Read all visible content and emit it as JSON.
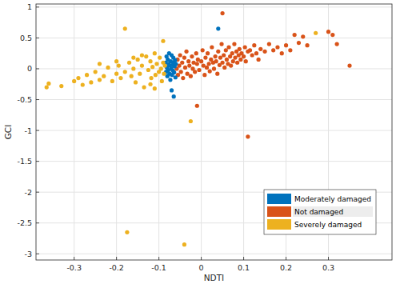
{
  "chart_data": {
    "type": "scatter",
    "x_label": "NDTI",
    "y_label": "GCI",
    "xlim": [
      -0.39,
      0.45
    ],
    "ylim": [
      -3.1,
      1.05
    ],
    "xticks": [
      -0.3,
      -0.2,
      -0.1,
      0,
      0.1,
      0.2,
      0.3
    ],
    "yticks": [
      -3,
      -2.5,
      -2,
      -1.5,
      -1,
      -0.5,
      0,
      0.5,
      1
    ],
    "grid": true,
    "legend": "lower right",
    "marker": "circle",
    "series": [
      {
        "name": "Moderately damaged",
        "color": "#0072bd",
        "x": [
          -0.084,
          -0.083,
          -0.082,
          -0.081,
          -0.08,
          -0.079,
          -0.078,
          -0.077,
          -0.076,
          -0.075,
          -0.074,
          -0.073,
          -0.072,
          -0.071,
          -0.07,
          -0.069,
          -0.068,
          -0.067,
          -0.066,
          -0.065,
          -0.064,
          -0.063,
          -0.062,
          -0.061,
          -0.06,
          -0.07,
          -0.065,
          0.04
        ],
        "values": [
          0.1,
          -0.05,
          0.2,
          0.02,
          -0.12,
          0.15,
          -0.02,
          0.08,
          0.25,
          -0.08,
          0.05,
          -0.18,
          0.12,
          0,
          0.22,
          -0.1,
          0.06,
          -0.03,
          0.18,
          0.1,
          -0.06,
          0.04,
          0.14,
          -0.14,
          0.08,
          -0.35,
          -0.45,
          0.65
        ]
      },
      {
        "name": "Not damaged",
        "color": "#d95319",
        "x": [
          -0.058,
          -0.056,
          -0.055,
          -0.052,
          -0.05,
          -0.048,
          -0.045,
          -0.043,
          -0.04,
          -0.038,
          -0.035,
          -0.033,
          -0.03,
          -0.028,
          -0.025,
          -0.022,
          -0.02,
          -0.018,
          -0.015,
          -0.012,
          -0.01,
          -0.01,
          -0.008,
          -0.005,
          0,
          0.003,
          0.005,
          0.008,
          0.01,
          0.013,
          0.015,
          0.018,
          0.02,
          0.023,
          0.025,
          0.028,
          0.03,
          0.033,
          0.035,
          0.038,
          0.04,
          0.043,
          0.045,
          0.048,
          0.05,
          0.05,
          0.053,
          0.055,
          0.058,
          0.06,
          0.063,
          0.065,
          0.068,
          0.07,
          0.073,
          0.075,
          0.078,
          0.08,
          0.083,
          0.085,
          0.088,
          0.09,
          0.093,
          0.095,
          0.1,
          0.103,
          0.105,
          0.11,
          0.11,
          0.115,
          0.12,
          0.125,
          0.13,
          0.135,
          0.14,
          0.15,
          0.16,
          0.17,
          0.18,
          0.19,
          0.2,
          0.21,
          0.22,
          0.23,
          0.24,
          0.25,
          0.3,
          0.31,
          0.32,
          0.35
        ],
        "values": [
          0,
          0.15,
          -0.1,
          0.05,
          0.22,
          -0.05,
          0.1,
          -0.15,
          0.18,
          0.02,
          0.28,
          -0.08,
          0.12,
          0.05,
          -0.12,
          0.2,
          0,
          0.1,
          -0.05,
          0.25,
          -0.6,
          0.08,
          0.15,
          -0.02,
          0.12,
          0.3,
          0.05,
          -0.1,
          0.18,
          0.02,
          0.25,
          0.08,
          -0.04,
          0.15,
          0.35,
          0.1,
          0,
          0.2,
          0.12,
          -0.08,
          0.28,
          0.06,
          0.18,
          0.4,
          0.9,
          0.1,
          0.22,
          0.02,
          0.3,
          0.15,
          0.08,
          0.35,
          0.2,
          0.05,
          0.25,
          0.12,
          0.4,
          0.18,
          0.28,
          0.1,
          0.22,
          0.32,
          0.15,
          0.25,
          0.2,
          0.35,
          0.12,
          0.28,
          -1.1,
          0.3,
          0.22,
          0.38,
          0.25,
          0.15,
          0.32,
          0.28,
          0.4,
          0.3,
          0.35,
          0.25,
          0.38,
          0.3,
          0.55,
          0.42,
          0.52,
          0.38,
          0.6,
          0.55,
          0.4,
          0.05
        ]
      },
      {
        "name": "Severely damaged",
        "color": "#edb120",
        "x": [
          -0.365,
          -0.36,
          -0.33,
          -0.3,
          -0.29,
          -0.28,
          -0.27,
          -0.26,
          -0.25,
          -0.24,
          -0.23,
          -0.22,
          -0.21,
          -0.2,
          -0.195,
          -0.19,
          -0.18,
          -0.18,
          -0.175,
          -0.17,
          -0.165,
          -0.16,
          -0.155,
          -0.15,
          -0.145,
          -0.14,
          -0.135,
          -0.13,
          -0.125,
          -0.12,
          -0.118,
          -0.115,
          -0.11,
          -0.108,
          -0.105,
          -0.1,
          -0.098,
          -0.095,
          -0.093,
          -0.09,
          -0.09,
          -0.088,
          -0.086,
          -0.12,
          -0.14,
          -0.16,
          -0.2,
          -0.24,
          -0.11,
          -0.025,
          -0.04,
          0.27
        ],
        "values": [
          -0.3,
          -0.24,
          -0.28,
          -0.2,
          -0.15,
          -0.26,
          -0.1,
          -0.22,
          -0.05,
          -0.18,
          -0.12,
          0.02,
          -0.2,
          -0.08,
          0.05,
          -0.15,
          0.65,
          -0.05,
          -2.65,
          0.1,
          -0.12,
          0,
          -0.22,
          0.15,
          -0.08,
          0.05,
          -0.3,
          0.2,
          -0.02,
          0.12,
          -0.15,
          0.03,
          0.25,
          -0.1,
          0.08,
          -0.05,
          0.18,
          0,
          -0.2,
          0.45,
          0.1,
          -0.08,
          0.05,
          -0.25,
          0.22,
          0.18,
          0.12,
          0.08,
          -0.32,
          -0.85,
          -2.85,
          0.58
        ]
      }
    ]
  }
}
